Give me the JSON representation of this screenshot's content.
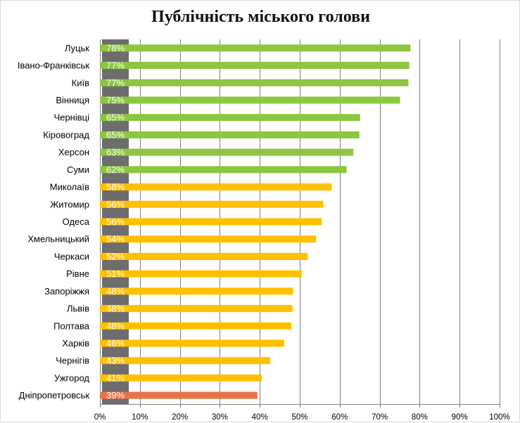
{
  "chart_data": {
    "type": "bar",
    "orientation": "horizontal",
    "title": "Публічність міського голови",
    "xlim": [
      0,
      100
    ],
    "x_ticks": [
      "0%",
      "10%",
      "20%",
      "30%",
      "40%",
      "50%",
      "60%",
      "70%",
      "80%",
      "90%",
      "100%"
    ],
    "grid": true,
    "categories": [
      "Луцьк",
      "Івано-Франківськ",
      "Київ",
      "Вінниця",
      "Чернівці",
      "Кіровоград",
      "Херсон",
      "Суми",
      "Миколаїв",
      "Житомир",
      "Одеса",
      "Хмельницький",
      "Черкаси",
      "Рівне",
      "Запоріжжя",
      "Львів",
      "Полтава",
      "Харків",
      "Чернігів",
      "Ужгород",
      "Дніпропетровськ"
    ],
    "values": [
      77.7,
      77.4,
      77.2,
      75.1,
      65.1,
      64.9,
      63.4,
      61.7,
      58.0,
      55.9,
      55.5,
      54.1,
      52.0,
      50.5,
      48.3,
      48.2,
      47.9,
      46.1,
      42.6,
      40.5,
      39.4
    ],
    "data_labels": [
      "78%",
      "77%",
      "77%",
      "75%",
      "65%",
      "65%",
      "63%",
      "62%",
      "58%",
      "56%",
      "56%",
      "54%",
      "52%",
      "51%",
      "48%",
      "48%",
      "48%",
      "46%",
      "43%",
      "41%",
      "39%"
    ],
    "bar_colors": [
      "#8dc63f",
      "#8dc63f",
      "#8dc63f",
      "#8dc63f",
      "#8dc63f",
      "#8dc63f",
      "#8dc63f",
      "#8dc63f",
      "#ffc000",
      "#ffc000",
      "#ffc000",
      "#ffc000",
      "#ffc000",
      "#ffc000",
      "#ffc000",
      "#ffc000",
      "#ffc000",
      "#ffc000",
      "#ffc000",
      "#ffc000",
      "#e8744a"
    ],
    "label_box_color": "#6d6d6d",
    "grid_color": "#7f7f7f"
  }
}
